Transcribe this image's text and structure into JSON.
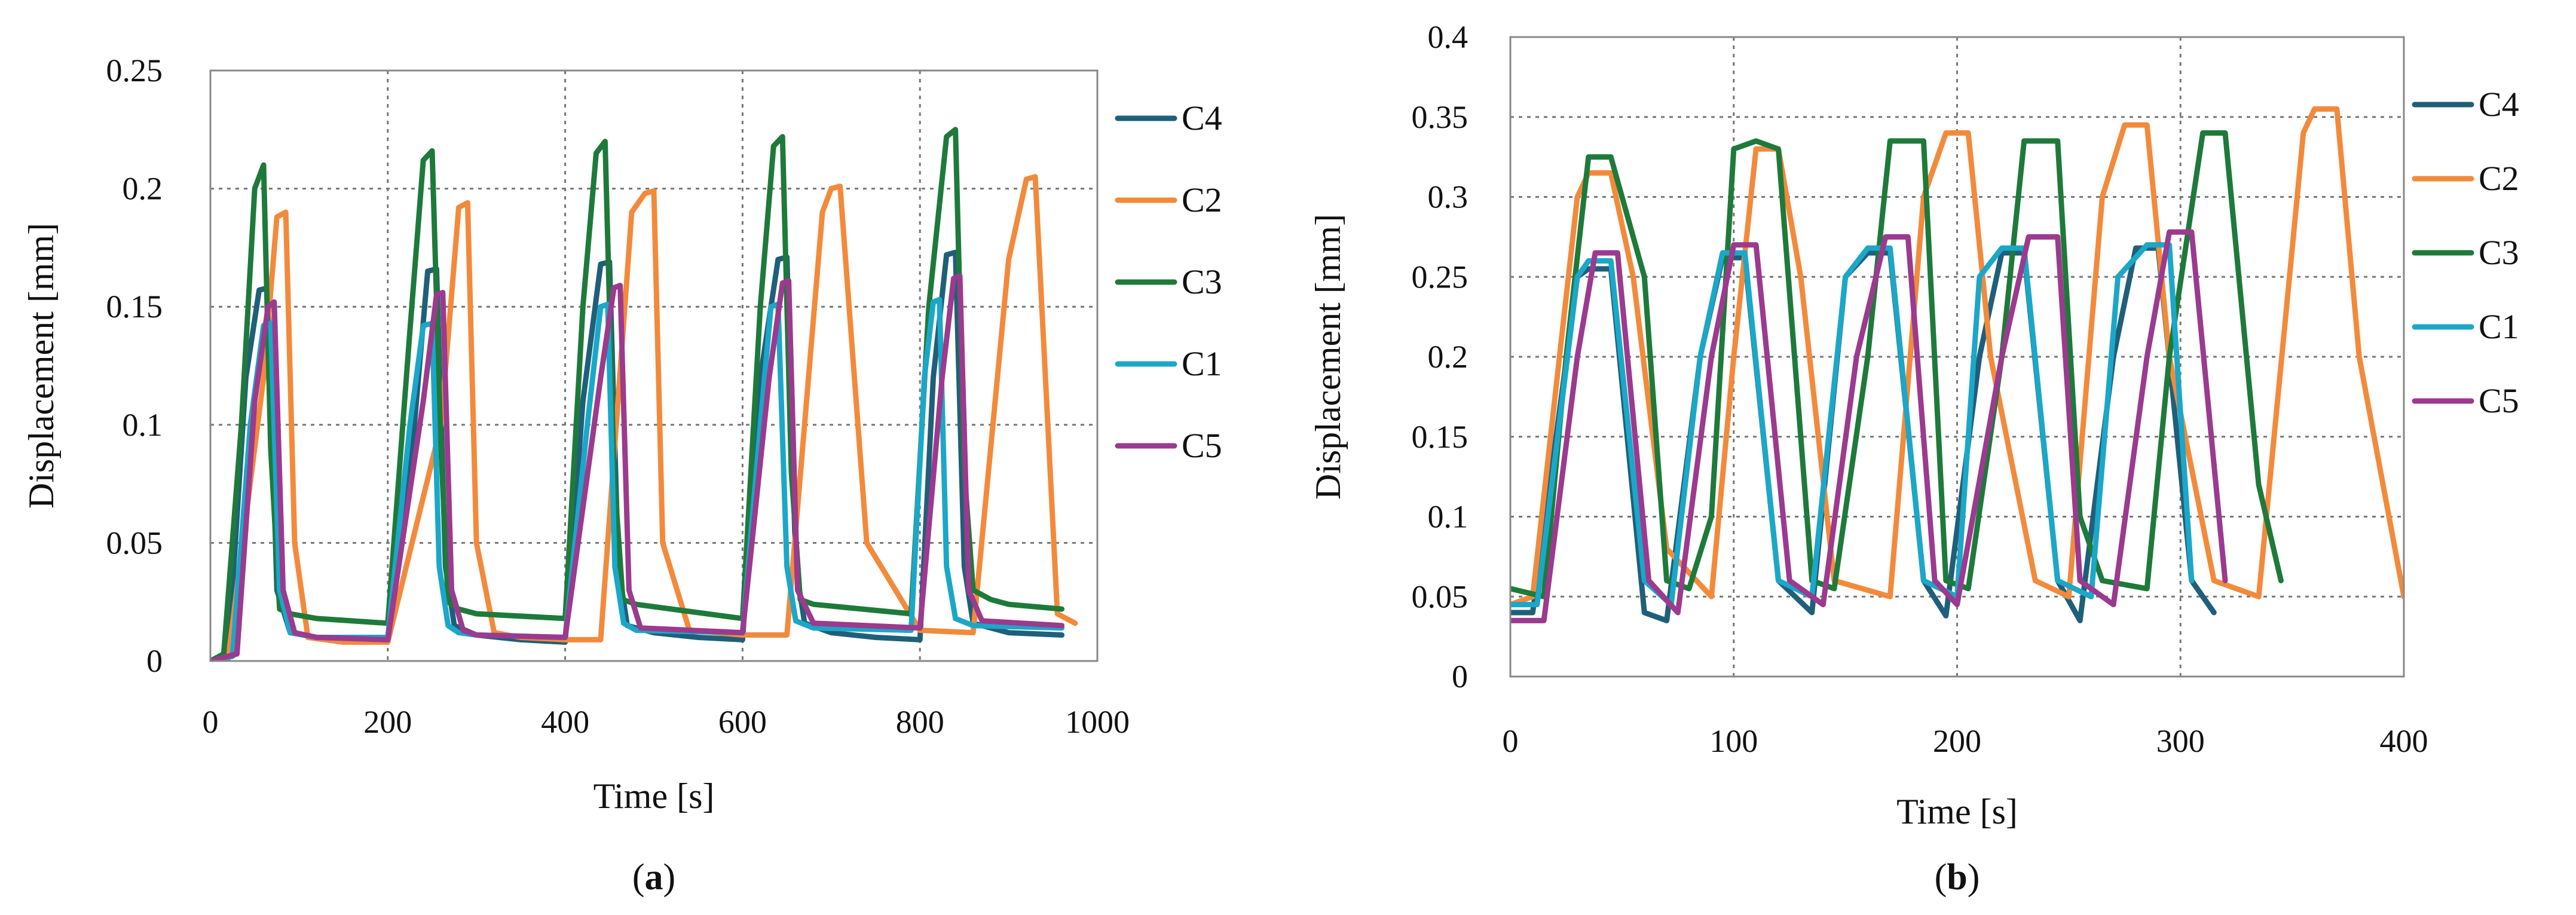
{
  "chart_data": [
    {
      "panel": "a",
      "type": "line",
      "xlabel": "Time [s]",
      "ylabel": "Displacement [mm]",
      "xlim": [
        0,
        1000
      ],
      "ylim": [
        0,
        0.25
      ],
      "xticks": [
        0,
        200,
        400,
        600,
        800,
        1000
      ],
      "yticks": [
        0,
        0.05,
        0.1,
        0.15,
        0.2,
        0.25
      ],
      "grid": true,
      "legend_position": "right",
      "series": [
        {
          "name": "C4",
          "color": "#1f5f7a",
          "x": [
            0,
            20,
            40,
            55,
            65,
            75,
            90,
            120,
            150,
            200,
            230,
            245,
            255,
            265,
            275,
            300,
            350,
            400,
            420,
            440,
            450,
            460,
            470,
            500,
            550,
            600,
            620,
            640,
            650,
            660,
            670,
            700,
            750,
            800,
            815,
            830,
            840,
            850,
            860,
            900,
            960
          ],
          "y": [
            0,
            0.002,
            0.12,
            0.157,
            0.158,
            0.03,
            0.012,
            0.01,
            0.009,
            0.008,
            0.1,
            0.165,
            0.166,
            0.04,
            0.015,
            0.011,
            0.009,
            0.008,
            0.11,
            0.168,
            0.169,
            0.04,
            0.015,
            0.012,
            0.01,
            0.009,
            0.12,
            0.17,
            0.171,
            0.04,
            0.016,
            0.012,
            0.01,
            0.009,
            0.12,
            0.172,
            0.173,
            0.04,
            0.016,
            0.012,
            0.011
          ]
        },
        {
          "name": "C2",
          "color": "#f28a3c",
          "x": [
            0,
            20,
            60,
            75,
            85,
            95,
            110,
            150,
            200,
            260,
            280,
            290,
            300,
            320,
            350,
            400,
            440,
            475,
            490,
            500,
            510,
            540,
            600,
            650,
            690,
            700,
            710,
            740,
            800,
            860,
            900,
            920,
            930,
            955,
            975
          ],
          "y": [
            0,
            0.001,
            0.12,
            0.188,
            0.19,
            0.05,
            0.01,
            0.008,
            0.008,
            0.1,
            0.192,
            0.194,
            0.05,
            0.012,
            0.01,
            0.009,
            0.009,
            0.19,
            0.198,
            0.199,
            0.05,
            0.013,
            0.011,
            0.011,
            0.19,
            0.2,
            0.201,
            0.05,
            0.013,
            0.012,
            0.17,
            0.204,
            0.205,
            0.02,
            0.016
          ]
        },
        {
          "name": "C3",
          "color": "#1e7a3a",
          "x": [
            0,
            15,
            35,
            50,
            60,
            68,
            78,
            90,
            120,
            200,
            225,
            240,
            250,
            260,
            268,
            280,
            300,
            400,
            420,
            435,
            445,
            455,
            465,
            480,
            600,
            620,
            635,
            645,
            655,
            665,
            680,
            790,
            810,
            830,
            840,
            850,
            860,
            880,
            900,
            960
          ],
          "y": [
            0,
            0.003,
            0.1,
            0.2,
            0.21,
            0.09,
            0.022,
            0.02,
            0.018,
            0.016,
            0.14,
            0.212,
            0.216,
            0.09,
            0.025,
            0.022,
            0.02,
            0.018,
            0.15,
            0.215,
            0.22,
            0.08,
            0.026,
            0.024,
            0.018,
            0.15,
            0.218,
            0.222,
            0.08,
            0.026,
            0.024,
            0.02,
            0.15,
            0.222,
            0.225,
            0.08,
            0.03,
            0.026,
            0.024,
            0.022
          ]
        },
        {
          "name": "C1",
          "color": "#1ba7c8",
          "x": [
            0,
            25,
            45,
            60,
            68,
            78,
            90,
            120,
            200,
            225,
            240,
            250,
            258,
            268,
            280,
            300,
            400,
            425,
            440,
            448,
            456,
            466,
            480,
            600,
            620,
            632,
            640,
            650,
            660,
            680,
            790,
            805,
            815,
            822,
            830,
            840,
            860,
            960
          ],
          "y": [
            0,
            0.002,
            0.1,
            0.142,
            0.143,
            0.03,
            0.012,
            0.01,
            0.01,
            0.1,
            0.142,
            0.143,
            0.04,
            0.015,
            0.012,
            0.011,
            0.01,
            0.1,
            0.15,
            0.151,
            0.04,
            0.016,
            0.013,
            0.012,
            0.1,
            0.15,
            0.151,
            0.04,
            0.017,
            0.014,
            0.013,
            0.12,
            0.152,
            0.153,
            0.04,
            0.018,
            0.015,
            0.014
          ]
        },
        {
          "name": "C5",
          "color": "#9b3a8e",
          "x": [
            0,
            30,
            50,
            65,
            72,
            82,
            95,
            120,
            200,
            240,
            255,
            262,
            272,
            285,
            300,
            400,
            440,
            455,
            462,
            472,
            485,
            600,
            630,
            645,
            652,
            662,
            680,
            800,
            825,
            838,
            845,
            855,
            870,
            960
          ],
          "y": [
            0,
            0.003,
            0.11,
            0.15,
            0.152,
            0.03,
            0.012,
            0.01,
            0.009,
            0.11,
            0.155,
            0.156,
            0.03,
            0.013,
            0.011,
            0.01,
            0.12,
            0.158,
            0.159,
            0.03,
            0.014,
            0.012,
            0.12,
            0.16,
            0.161,
            0.03,
            0.016,
            0.014,
            0.12,
            0.162,
            0.163,
            0.03,
            0.017,
            0.015
          ]
        }
      ]
    },
    {
      "panel": "b",
      "type": "line",
      "xlabel": "Time [s]",
      "ylabel": "Displacement [mm]",
      "xlim": [
        0,
        400
      ],
      "ylim": [
        0,
        0.4
      ],
      "xticks": [
        0,
        100,
        200,
        300,
        400
      ],
      "yticks": [
        0,
        0.05,
        0.1,
        0.15,
        0.2,
        0.25,
        0.3,
        0.35,
        0.4
      ],
      "grid": true,
      "legend_position": "right",
      "series": [
        {
          "name": "C4",
          "color": "#1f5f7a",
          "x": [
            0,
            10,
            30,
            35,
            45,
            60,
            70,
            85,
            95,
            105,
            120,
            135,
            150,
            160,
            170,
            185,
            195,
            210,
            220,
            230,
            245,
            255,
            270,
            280,
            290,
            305,
            315
          ],
          "y": [
            0.04,
            0.04,
            0.25,
            0.255,
            0.255,
            0.04,
            0.035,
            0.2,
            0.262,
            0.262,
            0.06,
            0.04,
            0.25,
            0.265,
            0.265,
            0.06,
            0.038,
            0.2,
            0.265,
            0.265,
            0.06,
            0.035,
            0.2,
            0.268,
            0.268,
            0.06,
            0.04
          ]
        },
        {
          "name": "C2",
          "color": "#f28a3c",
          "x": [
            0,
            10,
            30,
            35,
            45,
            55,
            70,
            90,
            100,
            110,
            120,
            130,
            145,
            170,
            185,
            195,
            205,
            215,
            235,
            250,
            265,
            275,
            285,
            295,
            315,
            335,
            355,
            360,
            370,
            380,
            400
          ],
          "y": [
            0.045,
            0.05,
            0.3,
            0.315,
            0.315,
            0.25,
            0.08,
            0.05,
            0.2,
            0.33,
            0.33,
            0.25,
            0.06,
            0.05,
            0.3,
            0.34,
            0.34,
            0.2,
            0.06,
            0.05,
            0.3,
            0.345,
            0.345,
            0.2,
            0.06,
            0.05,
            0.34,
            0.355,
            0.355,
            0.2,
            0.05
          ]
        },
        {
          "name": "C3",
          "color": "#1e7a3a",
          "x": [
            0,
            15,
            25,
            35,
            45,
            60,
            70,
            80,
            90,
            100,
            110,
            120,
            135,
            145,
            160,
            170,
            185,
            195,
            205,
            220,
            230,
            245,
            255,
            265,
            285,
            295,
            310,
            320,
            335,
            345
          ],
          "y": [
            0.055,
            0.05,
            0.2,
            0.325,
            0.325,
            0.25,
            0.06,
            0.055,
            0.1,
            0.33,
            0.335,
            0.33,
            0.06,
            0.055,
            0.2,
            0.335,
            0.335,
            0.06,
            0.055,
            0.2,
            0.335,
            0.335,
            0.1,
            0.06,
            0.055,
            0.2,
            0.34,
            0.34,
            0.12,
            0.06
          ]
        },
        {
          "name": "C1",
          "color": "#1ba7c8",
          "x": [
            0,
            12,
            30,
            35,
            45,
            60,
            72,
            85,
            95,
            105,
            120,
            135,
            150,
            160,
            170,
            185,
            200,
            210,
            220,
            230,
            245,
            260,
            272,
            285,
            295,
            305
          ],
          "y": [
            0.045,
            0.045,
            0.25,
            0.26,
            0.26,
            0.06,
            0.045,
            0.2,
            0.265,
            0.265,
            0.06,
            0.05,
            0.25,
            0.268,
            0.268,
            0.06,
            0.05,
            0.25,
            0.268,
            0.268,
            0.06,
            0.05,
            0.25,
            0.27,
            0.27,
            0.06
          ]
        },
        {
          "name": "C5",
          "color": "#9b3a8e",
          "x": [
            0,
            15,
            30,
            38,
            48,
            62,
            75,
            90,
            100,
            110,
            125,
            140,
            155,
            168,
            178,
            190,
            200,
            220,
            232,
            245,
            255,
            270,
            285,
            295,
            305,
            320
          ],
          "y": [
            0.035,
            0.035,
            0.2,
            0.265,
            0.265,
            0.06,
            0.04,
            0.2,
            0.27,
            0.27,
            0.06,
            0.045,
            0.2,
            0.275,
            0.275,
            0.06,
            0.045,
            0.2,
            0.275,
            0.275,
            0.06,
            0.045,
            0.2,
            0.278,
            0.278,
            0.06
          ]
        }
      ]
    }
  ],
  "captions": [
    {
      "open": "(",
      "letter": "a",
      "close": ")"
    },
    {
      "open": "(",
      "letter": "b",
      "close": ")"
    }
  ]
}
